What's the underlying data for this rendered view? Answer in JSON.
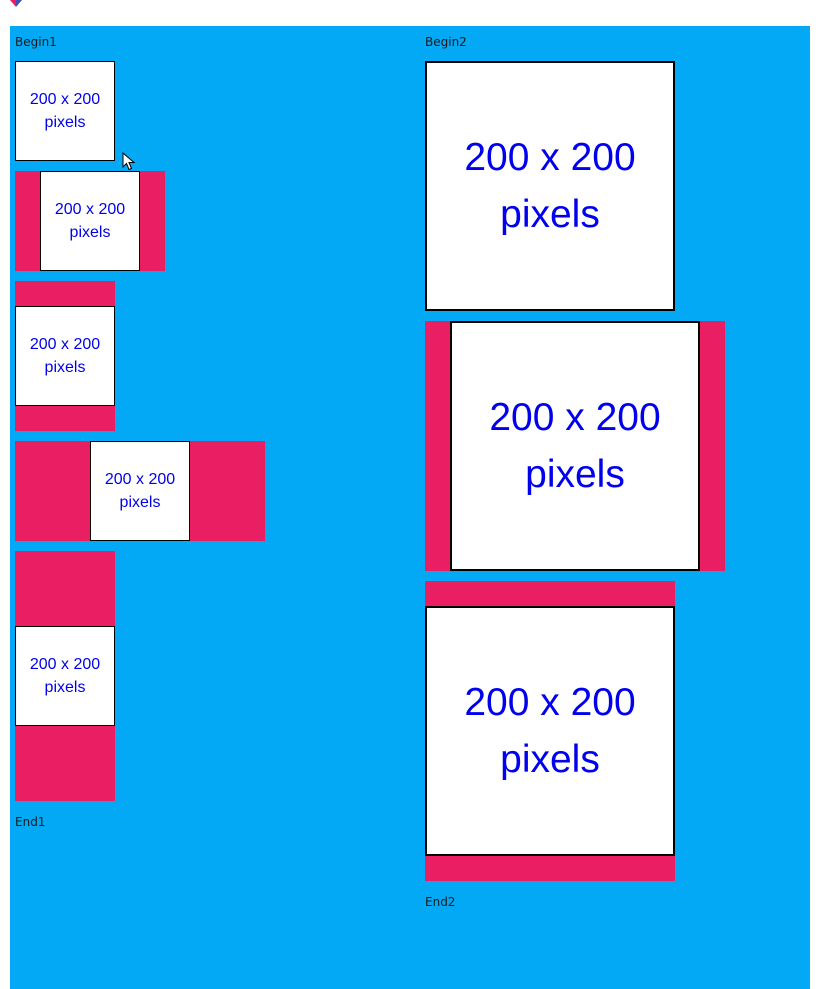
{
  "colors": {
    "background": "#03a9f4",
    "padding": "#e91e63",
    "image_bg": "#ffffff",
    "image_text": "#0000ee"
  },
  "column1": {
    "begin_label": "Begin1",
    "end_label": "End1",
    "images": [
      {
        "line1": "200 x 200",
        "line2": "pixels"
      },
      {
        "line1": "200 x 200",
        "line2": "pixels"
      },
      {
        "line1": "200 x 200",
        "line2": "pixels"
      },
      {
        "line1": "200 x 200",
        "line2": "pixels"
      },
      {
        "line1": "200 x 200",
        "line2": "pixels"
      }
    ]
  },
  "column2": {
    "begin_label": "Begin2",
    "end_label": "End2",
    "images": [
      {
        "line1": "200 x 200",
        "line2": "pixels"
      },
      {
        "line1": "200 x 200",
        "line2": "pixels"
      },
      {
        "line1": "200 x 200",
        "line2": "pixels"
      }
    ]
  },
  "icons": {
    "app": "app-logo-icon",
    "cursor": "mouse-pointer-icon"
  }
}
